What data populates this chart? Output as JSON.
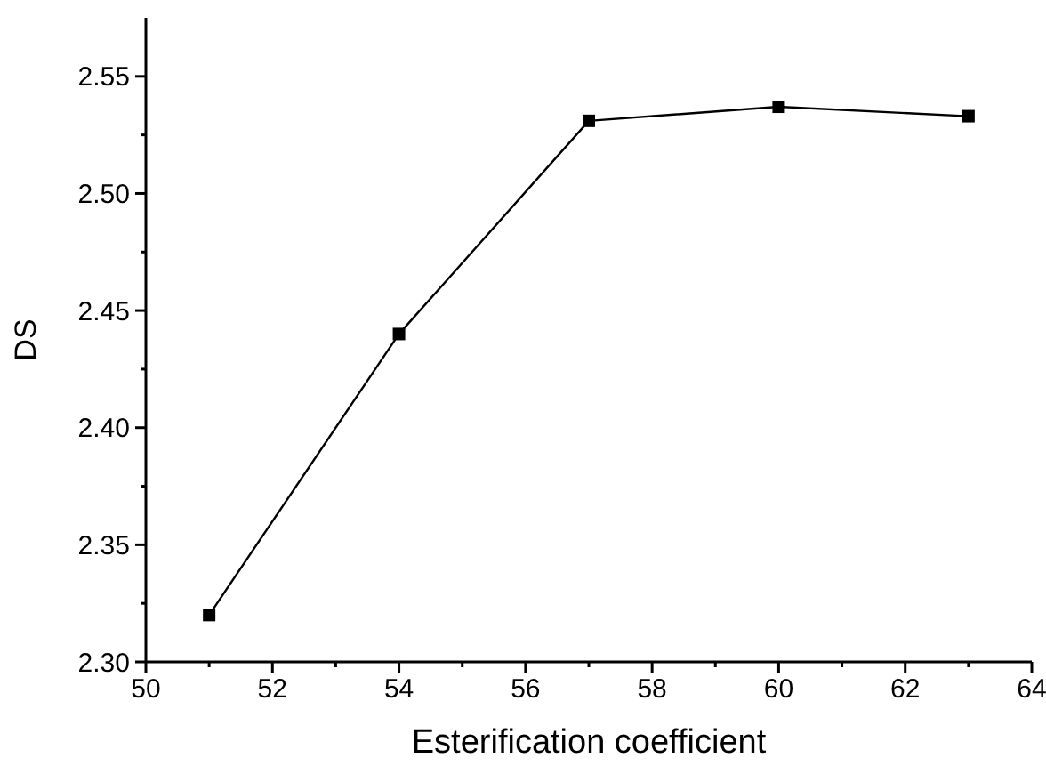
{
  "chart_data": {
    "type": "line",
    "xlabel": "Esterification coefficient",
    "ylabel": "DS",
    "x": [
      51,
      54,
      57,
      60,
      63
    ],
    "series": [
      {
        "color": "#000000",
        "values": [
          2.32,
          2.44,
          2.531,
          2.537,
          2.533
        ]
      }
    ],
    "xlim": [
      50,
      64
    ],
    "xticks": [
      50,
      52,
      54,
      56,
      58,
      60,
      62,
      64
    ],
    "ylim": [
      2.3,
      2.575
    ],
    "yticks": [
      {
        "value": 2.3,
        "label": "2.30"
      },
      2.35,
      {
        "value": 2.4,
        "label": "2.40"
      },
      2.45,
      {
        "value": 2.5,
        "label": "2.50"
      },
      2.55
    ],
    "marker": "square",
    "line_style": "solid",
    "grid": false
  }
}
